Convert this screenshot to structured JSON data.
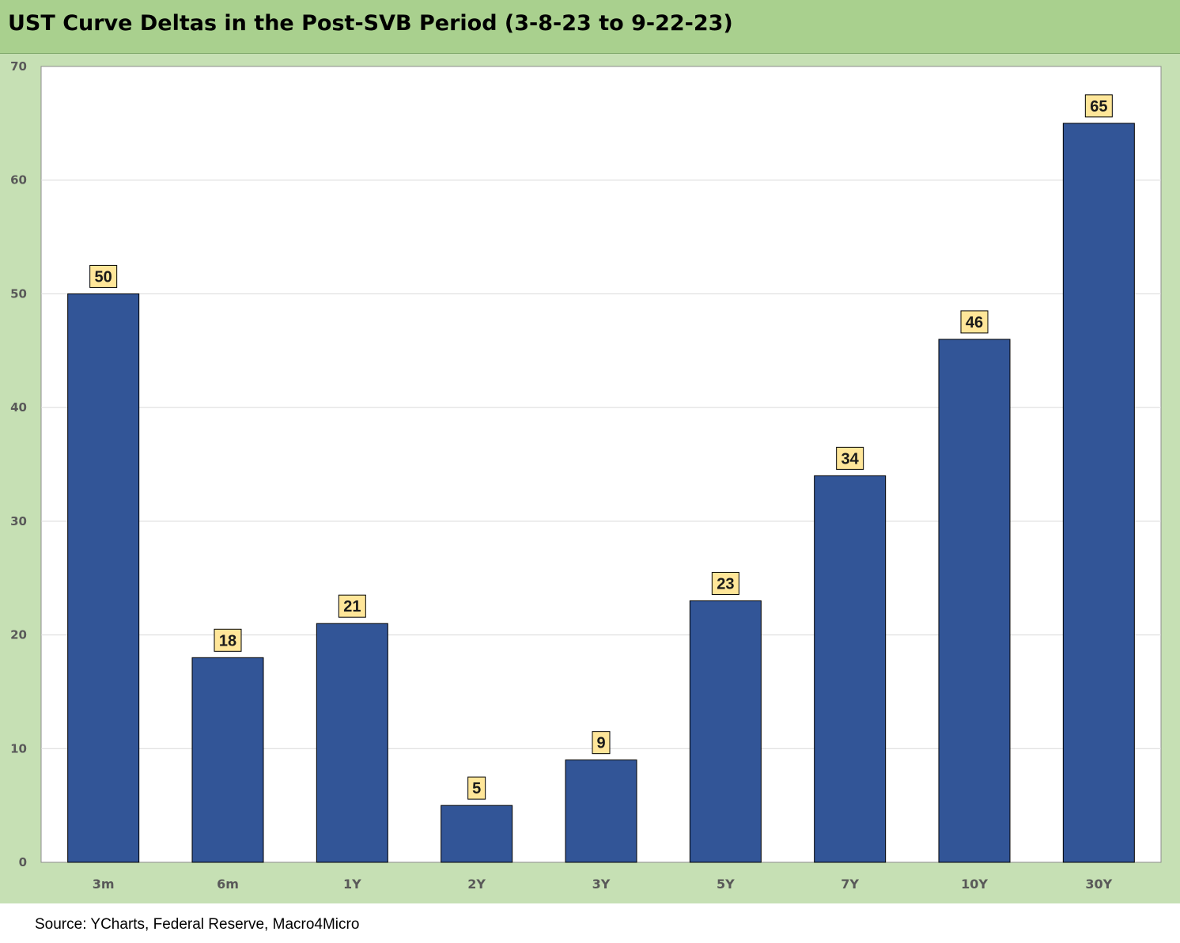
{
  "title": "UST Curve Deltas in the Post-SVB Period (3-8-23 to 9-22-23)",
  "source": "Source: YCharts, Federal Reserve, Macro4Micro",
  "colors": {
    "title_bg": "#a9d08e",
    "frame_bg": "#c6e0b4",
    "plot_bg": "#ffffff",
    "bar_fill": "#325597",
    "bar_stroke": "#000000",
    "label_bg": "#ffe699",
    "gridline": "#d9d9d9"
  },
  "chart_data": {
    "type": "bar",
    "categories": [
      "3m",
      "6m",
      "1Y",
      "2Y",
      "3Y",
      "5Y",
      "7Y",
      "10Y",
      "30Y"
    ],
    "values": [
      50,
      18,
      21,
      5,
      9,
      23,
      34,
      46,
      65
    ],
    "ylim": [
      0,
      70
    ],
    "yticks": [
      0,
      10,
      20,
      30,
      40,
      50,
      60,
      70
    ],
    "grid": true,
    "data_labels": true,
    "xlabel": "",
    "ylabel": ""
  }
}
